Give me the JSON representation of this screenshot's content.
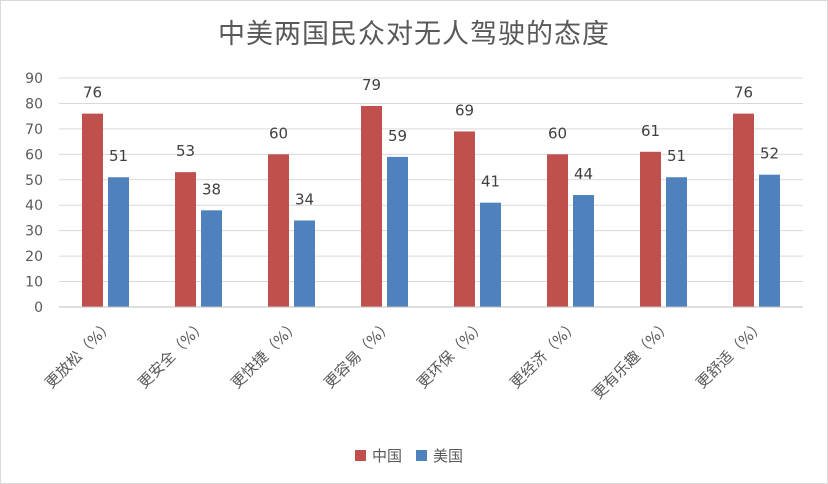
{
  "chart_data": {
    "type": "bar",
    "title": "中美两国民众对无人驾驶的态度",
    "categories": [
      "更放松（%）",
      "更安全（%）",
      "更快捷（%）",
      "更容易（%）",
      "更环保（%）",
      "更经济（%）",
      "更有乐趣（%）",
      "更舒适（%）"
    ],
    "series": [
      {
        "name": "中国",
        "color": "#c0504d",
        "values": [
          76,
          53,
          60,
          79,
          69,
          60,
          61,
          76
        ]
      },
      {
        "name": "美国",
        "color": "#4f81bd",
        "values": [
          51,
          38,
          34,
          59,
          41,
          44,
          51,
          52
        ]
      }
    ],
    "ylim": [
      0,
      90
    ],
    "yticks": [
      0,
      10,
      20,
      30,
      40,
      50,
      60,
      70,
      80,
      90
    ],
    "grid": true,
    "legend_position": "bottom",
    "data_labels": true
  }
}
